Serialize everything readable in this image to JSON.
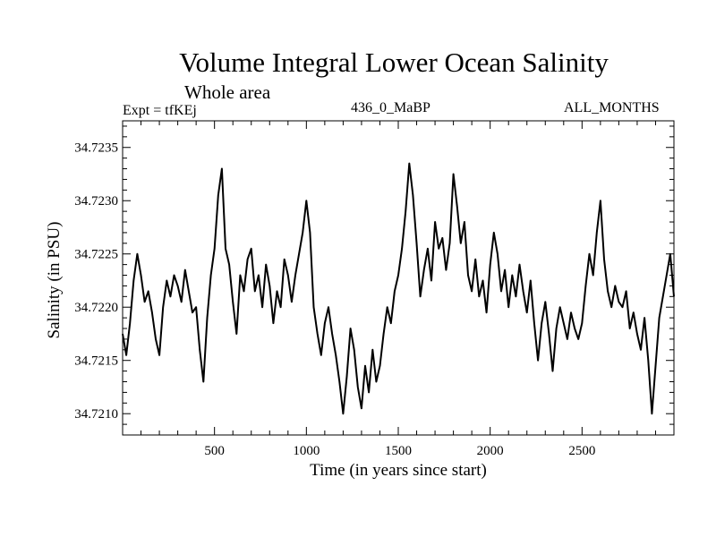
{
  "chart_data": {
    "type": "line",
    "title": "Volume Integral Lower Ocean Salinity",
    "subtitle": "Whole area",
    "annotations": {
      "left": "Expt = tfKEj",
      "center": "436_0_MaBP",
      "right": "ALL_MONTHS"
    },
    "xlabel": "Time (in years since start)",
    "ylabel": "Salinity (in PSU)",
    "xlim": [
      0,
      3000
    ],
    "ylim": [
      34.7208,
      34.72375
    ],
    "xticks": [
      500,
      1000,
      1500,
      2000,
      2500
    ],
    "xtick_labels": [
      "500",
      "1000",
      "1500",
      "2000",
      "2500"
    ],
    "yticks": [
      34.721,
      34.7215,
      34.722,
      34.7225,
      34.723,
      34.7235
    ],
    "ytick_labels": [
      "34.7210",
      "34.7215",
      "34.7220",
      "34.7225",
      "34.7230",
      "34.7235"
    ],
    "grid": false,
    "legend": "none",
    "line_color": "#000000",
    "series": [
      {
        "x": [
          0,
          20,
          40,
          60,
          80,
          100,
          120,
          140,
          160,
          180,
          200,
          220,
          240,
          260,
          280,
          300,
          320,
          340,
          360,
          380,
          400,
          420,
          440,
          460,
          480,
          500,
          520,
          540,
          560,
          580,
          600,
          620,
          640,
          660,
          680,
          700,
          720,
          740,
          760,
          780,
          800,
          820,
          840,
          860,
          880,
          900,
          920,
          940,
          960,
          980,
          1000,
          1020,
          1040,
          1060,
          1080,
          1100,
          1120,
          1140,
          1160,
          1180,
          1200,
          1220,
          1240,
          1260,
          1280,
          1300,
          1320,
          1340,
          1360,
          1380,
          1400,
          1420,
          1440,
          1460,
          1480,
          1500,
          1520,
          1540,
          1560,
          1580,
          1600,
          1620,
          1640,
          1660,
          1680,
          1700,
          1720,
          1740,
          1760,
          1780,
          1800,
          1820,
          1840,
          1860,
          1880,
          1900,
          1920,
          1940,
          1960,
          1980,
          2000,
          2020,
          2040,
          2060,
          2080,
          2100,
          2120,
          2140,
          2160,
          2180,
          2200,
          2220,
          2240,
          2260,
          2280,
          2300,
          2320,
          2340,
          2360,
          2380,
          2400,
          2420,
          2440,
          2460,
          2480,
          2500,
          2520,
          2540,
          2560,
          2580,
          2600,
          2620,
          2640,
          2660,
          2680,
          2700,
          2720,
          2740,
          2760,
          2780,
          2800,
          2820,
          2840,
          2860,
          2880,
          2900,
          2920,
          2940,
          2960,
          2980,
          3000
        ],
        "y": [
          34.72175,
          34.72155,
          34.72185,
          34.72225,
          34.7225,
          34.7223,
          34.72205,
          34.72215,
          34.72195,
          34.7217,
          34.72155,
          34.722,
          34.72225,
          34.7221,
          34.7223,
          34.7222,
          34.72205,
          34.72235,
          34.72215,
          34.72195,
          34.722,
          34.7216,
          34.7213,
          34.7219,
          34.7223,
          34.72255,
          34.72305,
          34.7233,
          34.72255,
          34.7224,
          34.72205,
          34.72175,
          34.7223,
          34.72215,
          34.72245,
          34.72255,
          34.72215,
          34.7223,
          34.722,
          34.7224,
          34.7222,
          34.72185,
          34.72215,
          34.722,
          34.72245,
          34.7223,
          34.72205,
          34.7223,
          34.7225,
          34.7227,
          34.723,
          34.7227,
          34.722,
          34.72175,
          34.72155,
          34.72185,
          34.722,
          34.72175,
          34.72155,
          34.7213,
          34.721,
          34.72135,
          34.7218,
          34.7216,
          34.72125,
          34.72105,
          34.72145,
          34.7212,
          34.7216,
          34.7213,
          34.72145,
          34.72175,
          34.722,
          34.72185,
          34.72215,
          34.7223,
          34.72255,
          34.7229,
          34.72335,
          34.72305,
          34.7226,
          34.7221,
          34.72235,
          34.72255,
          34.72225,
          34.7228,
          34.72255,
          34.72265,
          34.72235,
          34.7226,
          34.72325,
          34.72295,
          34.7226,
          34.7228,
          34.7223,
          34.72215,
          34.72245,
          34.7221,
          34.72225,
          34.72195,
          34.7224,
          34.7227,
          34.7225,
          34.72215,
          34.72235,
          34.722,
          34.7223,
          34.7221,
          34.7224,
          34.72215,
          34.72195,
          34.72225,
          34.72185,
          34.7215,
          34.72185,
          34.72205,
          34.72175,
          34.7214,
          34.7218,
          34.722,
          34.72185,
          34.7217,
          34.72195,
          34.7218,
          34.7217,
          34.72185,
          34.7222,
          34.7225,
          34.7223,
          34.7227,
          34.723,
          34.72245,
          34.72215,
          34.722,
          34.7222,
          34.72205,
          34.722,
          34.72215,
          34.7218,
          34.72195,
          34.72175,
          34.7216,
          34.7219,
          34.7215,
          34.721,
          34.72145,
          34.7219,
          34.7221,
          34.7223,
          34.7225,
          34.7221
        ]
      }
    ]
  }
}
